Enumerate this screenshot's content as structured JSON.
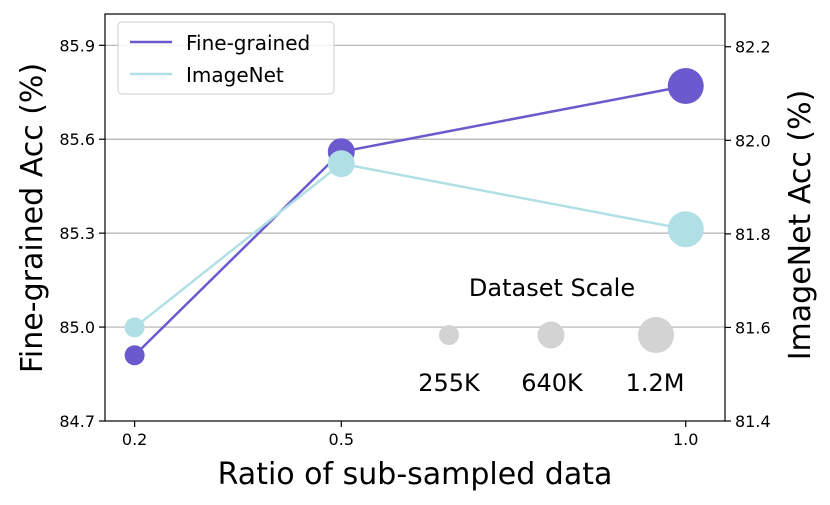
{
  "chart_data": {
    "type": "line",
    "xlabel": "Ratio of sub-sampled data",
    "ylabel_left": "Fine-grained Acc (%)",
    "ylabel_right": "ImageNet Acc (%)",
    "x_ticks": [
      0.2,
      0.5,
      1.0
    ],
    "x_tick_labels": [
      "0.2",
      "0.5",
      "1.0"
    ],
    "xlim": [
      0.157,
      1.057
    ],
    "ylim_left": [
      84.7,
      86.0
    ],
    "ylim_right": [
      81.4,
      82.27
    ],
    "y_ticks_left": [
      "84.7",
      "85.0",
      "85.3",
      "85.6",
      "85.9"
    ],
    "y_ticks_right": [
      "81.4",
      "81.6",
      "81.8",
      "82.0",
      "82.2"
    ],
    "grid": "horizontal",
    "series": [
      {
        "name": "Fine-grained",
        "axis": "left",
        "color": "#6a5acd",
        "x": [
          0.2,
          0.5,
          1.0
        ],
        "values": [
          84.91,
          85.56,
          85.77
        ],
        "marker_sizes": [
          "255K",
          "640K",
          "1.2M"
        ]
      },
      {
        "name": "ImageNet",
        "axis": "right",
        "color": "#b0e0e6",
        "x": [
          0.2,
          0.5,
          1.0
        ],
        "values": [
          81.6,
          81.95,
          81.81
        ],
        "marker_sizes": [
          "255K",
          "640K",
          "1.2M"
        ]
      }
    ],
    "legend": {
      "position": "top-left",
      "entries": [
        "Fine-grained",
        "ImageNet"
      ]
    },
    "size_legend": {
      "title": "Dataset Scale",
      "color": "#d3d3d3",
      "entries": [
        "255K",
        "640K",
        "1.2M"
      ]
    }
  }
}
